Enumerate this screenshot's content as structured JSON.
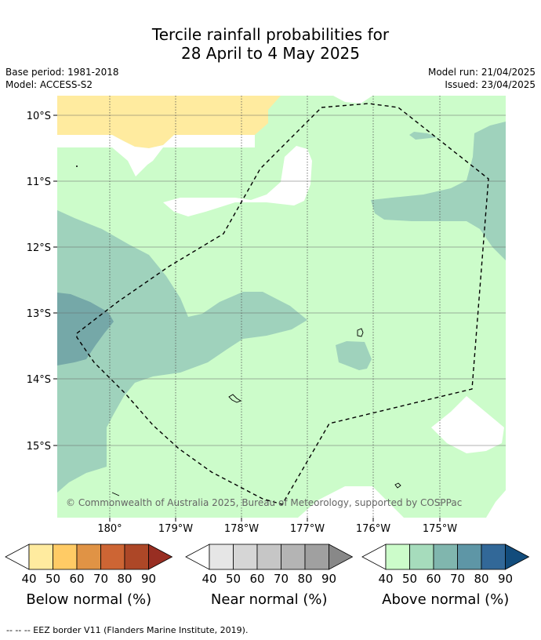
{
  "header": {
    "title_line1": "Tercile rainfall probabilities for",
    "title_line2": "28 April to 4 May 2025",
    "base_period": "Base period: 1981-2018",
    "model": "Model: ACCESS-S2",
    "model_run": "Model run: 21/04/2025",
    "issued": "Issued: 23/04/2025"
  },
  "map": {
    "lat_labels": [
      "10°S",
      "11°S",
      "12°S",
      "13°S",
      "14°S",
      "15°S"
    ],
    "lon_labels": [
      "180°",
      "179°W",
      "178°W",
      "177°W",
      "176°W",
      "175°W"
    ],
    "copyright": "© Commonwealth of Australia 2025, Bureau of Meteorology, supported by COSPPac",
    "border_style": "dashed",
    "colors": {
      "below_40": "#ffeb9f",
      "near_normal": "#ffffff",
      "above_40": "#ccfcca",
      "above_50": "#9fd2bc",
      "above_60": "#75a8a8"
    }
  },
  "legends": [
    {
      "title": "Below normal (%)",
      "ticks": [
        "40",
        "50",
        "60",
        "70",
        "80",
        "90"
      ],
      "colors": [
        "#ffeb9f",
        "#ffcb65",
        "#e09345",
        "#cd6534",
        "#ad4727",
        "#982e22"
      ]
    },
    {
      "title": "Near normal (%)",
      "ticks": [
        "40",
        "50",
        "60",
        "70",
        "80",
        "90"
      ],
      "colors": [
        "#e6e6e6",
        "#d6d6d6",
        "#c6c6c6",
        "#b4b4b4",
        "#a0a0a0",
        "#888888"
      ]
    },
    {
      "title": "Above normal (%)",
      "ticks": [
        "40",
        "50",
        "60",
        "70",
        "80",
        "90"
      ],
      "colors": [
        "#ccfcca",
        "#a6dcbc",
        "#80b6ae",
        "#5e96a6",
        "#326898",
        "#124c7c"
      ]
    }
  ],
  "footer": {
    "eez_note": "--  --  -- EEZ border V11 (Flanders Marine Institute, 2019)."
  }
}
